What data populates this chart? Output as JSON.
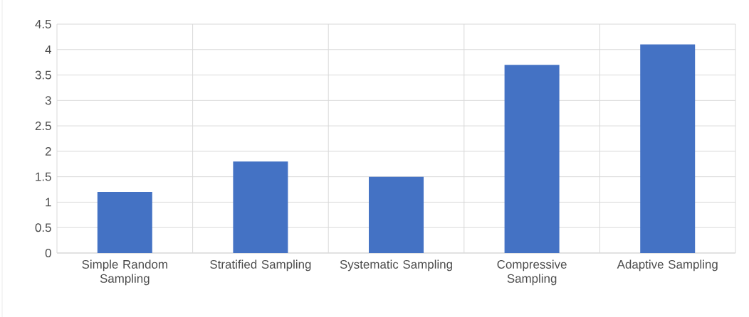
{
  "chart_data": {
    "type": "bar",
    "categories": [
      "Simple Random Sampling",
      "Stratified Sampling",
      "Systematic Sampling",
      "Compressive Sampling",
      "Adaptive Sampling"
    ],
    "values": [
      1.2,
      1.8,
      1.5,
      3.7,
      4.1
    ],
    "color": "#4472c4",
    "ylim": [
      0,
      4.5
    ],
    "yticks": [
      0,
      0.5,
      1,
      1.5,
      2,
      2.5,
      3,
      3.5,
      4,
      4.5
    ],
    "grid": true
  }
}
